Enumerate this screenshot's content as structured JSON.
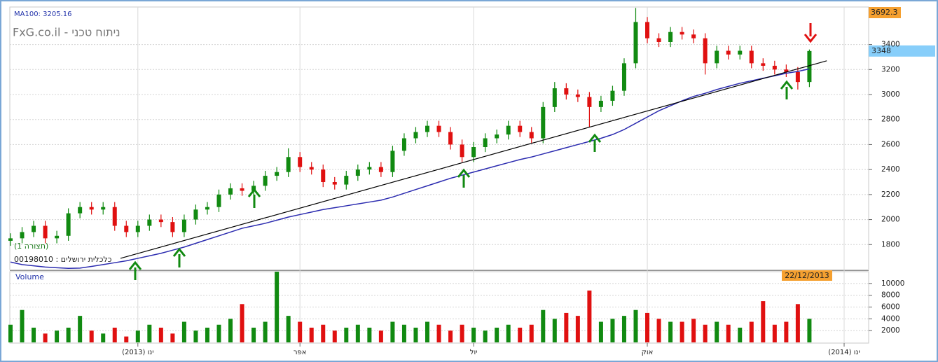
{
  "chart_data": [
    {
      "type": "candlestick",
      "ma_label": "MA100: 3205.16",
      "watermark": "FxG.co.il - ניתוח טכני",
      "config_label": "(תצורה 1)",
      "instrument": "00198010 : כלכלית ירושלים",
      "max_value": 3692.3,
      "last_value": 3348,
      "date_label": "22/12/2013",
      "categories": [
        null,
        null,
        null,
        null,
        null,
        null,
        null,
        null,
        null,
        null,
        null,
        "(2013) ינו",
        null,
        null,
        null,
        null,
        null,
        null,
        null,
        null,
        null,
        null,
        null,
        null,
        null,
        "אפר",
        null,
        null,
        null,
        null,
        null,
        null,
        null,
        null,
        null,
        null,
        null,
        null,
        null,
        null,
        "יול",
        null,
        null,
        null,
        null,
        null,
        null,
        null,
        null,
        null,
        null,
        null,
        null,
        null,
        null,
        "אוק",
        null,
        null,
        null,
        null,
        null,
        null,
        null,
        null,
        null,
        null,
        null,
        null,
        null,
        null,
        null,
        null,
        "(2014) ינו",
        null
      ],
      "open": [
        1830,
        1850,
        1900,
        1950,
        1850,
        1870,
        2050,
        2100,
        2080,
        2100,
        1950,
        1900,
        1950,
        2000,
        1980,
        1900,
        2000,
        2080,
        2100,
        2200,
        2250,
        2230,
        2270,
        2350,
        2380,
        2500,
        2420,
        2400,
        2300,
        2280,
        2350,
        2400,
        2420,
        2380,
        2550,
        2650,
        2700,
        2750,
        2700,
        2600,
        2500,
        2580,
        2650,
        2680,
        2750,
        2700,
        2650,
        2900,
        3050,
        3000,
        2980,
        2900,
        2950,
        3030,
        3250,
        3580,
        3450,
        3420,
        3500,
        3480,
        3450,
        3250,
        3350,
        3320,
        3350,
        3250,
        3230,
        3200,
        3180,
        3100,
        null,
        null,
        null,
        null
      ],
      "high": [
        1890,
        1940,
        1990,
        1990,
        1910,
        2090,
        2140,
        2140,
        2140,
        2140,
        1990,
        1990,
        2040,
        2040,
        2020,
        2040,
        2120,
        2140,
        2240,
        2290,
        2290,
        2310,
        2390,
        2420,
        2570,
        2540,
        2460,
        2440,
        2340,
        2390,
        2440,
        2460,
        2460,
        2590,
        2690,
        2740,
        2790,
        2790,
        2740,
        2640,
        2620,
        2690,
        2720,
        2790,
        2790,
        2740,
        2940,
        3100,
        3090,
        3040,
        3020,
        2990,
        3070,
        3290,
        3692.3,
        3620,
        3490,
        3540,
        3540,
        3520,
        3490,
        3390,
        3390,
        3390,
        3390,
        3290,
        3270,
        3240,
        3220,
        3360,
        null,
        null,
        null,
        null
      ],
      "low": [
        1790,
        1810,
        1860,
        1810,
        1810,
        1830,
        2010,
        2040,
        2040,
        1910,
        1860,
        1860,
        1910,
        1940,
        1860,
        1860,
        1960,
        2040,
        2060,
        2160,
        2190,
        2190,
        2230,
        2310,
        2340,
        2380,
        2360,
        2260,
        2240,
        2240,
        2310,
        2360,
        2340,
        2340,
        2510,
        2610,
        2660,
        2660,
        2560,
        2460,
        2460,
        2540,
        2610,
        2640,
        2660,
        2610,
        2610,
        2860,
        2960,
        2940,
        2740,
        2860,
        2910,
        2990,
        3210,
        3410,
        3380,
        3380,
        3440,
        3410,
        3160,
        3210,
        3280,
        3280,
        3210,
        3190,
        3160,
        3140,
        3040,
        3060,
        null,
        null,
        null,
        null
      ],
      "close": [
        1850,
        1900,
        1950,
        1850,
        1870,
        2050,
        2100,
        2080,
        2100,
        1950,
        1900,
        1950,
        2000,
        1980,
        1900,
        2000,
        2080,
        2100,
        2200,
        2250,
        2230,
        2270,
        2350,
        2380,
        2500,
        2420,
        2400,
        2300,
        2280,
        2350,
        2400,
        2420,
        2380,
        2550,
        2650,
        2700,
        2750,
        2700,
        2600,
        2500,
        2580,
        2650,
        2680,
        2750,
        2700,
        2650,
        2900,
        3050,
        3000,
        2980,
        2900,
        2950,
        3030,
        3250,
        3580,
        3450,
        3420,
        3500,
        3480,
        3450,
        3250,
        3350,
        3320,
        3350,
        3250,
        3230,
        3200,
        3180,
        3100,
        3348,
        null,
        null,
        null,
        null
      ],
      "up_color": "#118a11",
      "down_color": "#e01010",
      "series": [
        {
          "color": "#2c2cb0",
          "values": [
            1660,
            1640,
            1630,
            1620,
            1615,
            1610,
            1612,
            1625,
            1640,
            1655,
            1670,
            1690,
            1710,
            1730,
            1755,
            1780,
            1810,
            1840,
            1870,
            1900,
            1930,
            1950,
            1970,
            1995,
            2020,
            2040,
            2060,
            2080,
            2095,
            2110,
            2125,
            2140,
            2155,
            2180,
            2210,
            2240,
            2270,
            2300,
            2330,
            2355,
            2380,
            2405,
            2430,
            2455,
            2480,
            2500,
            2525,
            2550,
            2575,
            2600,
            2625,
            2650,
            2680,
            2720,
            2770,
            2820,
            2870,
            2910,
            2950,
            2985,
            3010,
            3040,
            3065,
            3090,
            3110,
            3130,
            3150,
            3170,
            3185,
            3205.16,
            null,
            null,
            null,
            null
          ]
        }
      ],
      "trendline": {
        "x": [
          9.5,
          70.5
        ],
        "y": [
          1690,
          3270
        ],
        "color": "#000000"
      },
      "ylim": [
        1600,
        3700
      ],
      "yticks": [
        1800,
        2000,
        2200,
        2400,
        2600,
        2800,
        3000,
        3200,
        3400
      ],
      "grid": true
    },
    {
      "type": "bar",
      "title": "Volume",
      "values": [
        3000,
        5500,
        2500,
        1500,
        2000,
        2500,
        4500,
        2000,
        1500,
        2500,
        1000,
        2000,
        3000,
        2500,
        1500,
        3500,
        2000,
        2500,
        3000,
        4000,
        6500,
        2500,
        3500,
        12000,
        4500,
        3500,
        2500,
        3000,
        2000,
        2500,
        3000,
        2500,
        2000,
        3500,
        3000,
        2500,
        3500,
        3000,
        2000,
        3000,
        2500,
        2000,
        2500,
        3000,
        2500,
        3000,
        5500,
        4000,
        5000,
        4500,
        8800,
        3500,
        4000,
        4500,
        5500,
        5000,
        4000,
        3500,
        3500,
        4000,
        3000,
        3500,
        3000,
        2500,
        3500,
        7000,
        3000,
        3500,
        6500,
        4000,
        null,
        null,
        null,
        null
      ],
      "ylim": [
        0,
        12000
      ],
      "yticks": [
        2000,
        4000,
        6000,
        8000,
        10000
      ],
      "grid": true
    }
  ]
}
